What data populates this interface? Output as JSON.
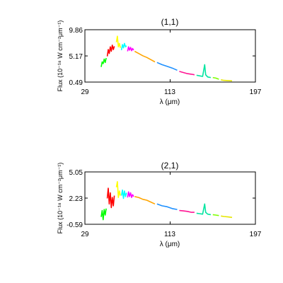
{
  "chart_data": [
    {
      "type": "line",
      "title": "(1,1)",
      "xlabel": "λ (μm)",
      "ylabel": "Flux (10⁻¹⁸ W cm⁻²μm⁻¹)",
      "xlim": [
        29,
        197
      ],
      "ylim": [
        0.49,
        9.86
      ],
      "x_ticks": [
        "29",
        "113",
        "197"
      ],
      "y_ticks": [
        "0.49",
        "5.17",
        "9.86"
      ],
      "grid": false,
      "series": [
        {
          "color": "#00ff00",
          "x": [
            45,
            46,
            47,
            48,
            49,
            50
          ],
          "y": [
            3.2,
            4.1,
            3.8,
            4.6,
            4.0,
            4.8
          ]
        },
        {
          "color": "#ff0000",
          "x": [
            51,
            52,
            53,
            54,
            55,
            56,
            57,
            58
          ],
          "y": [
            5.1,
            6.3,
            5.6,
            6.8,
            6.0,
            7.1,
            6.3,
            6.9
          ]
        },
        {
          "color": "#ffff00",
          "x": [
            60,
            61,
            62,
            63,
            64
          ],
          "y": [
            7.6,
            8.7,
            6.8,
            7.4,
            6.6
          ]
        },
        {
          "color": "#00ffff",
          "x": [
            65,
            66,
            67,
            68,
            69,
            70
          ],
          "y": [
            6.2,
            7.2,
            6.6,
            7.4,
            6.8,
            7.0
          ]
        },
        {
          "color": "#ff00ff",
          "x": [
            71,
            72,
            73,
            74,
            75,
            76,
            77
          ],
          "y": [
            6.0,
            6.8,
            6.2,
            6.7,
            6.1,
            6.5,
            6.2
          ]
        },
        {
          "color": "#ffa500",
          "x": [
            78,
            82,
            86,
            90,
            94,
            98
          ],
          "y": [
            6.0,
            5.6,
            5.2,
            4.9,
            4.5,
            4.1
          ]
        },
        {
          "color": "#1e90ff",
          "x": [
            100,
            105,
            110,
            115,
            120
          ],
          "y": [
            4.0,
            3.6,
            3.3,
            3.0,
            2.6
          ]
        },
        {
          "color": "#ff1493",
          "x": [
            122,
            126,
            130,
            134,
            137
          ],
          "y": [
            2.4,
            2.2,
            2.0,
            1.9,
            1.8
          ]
        },
        {
          "color": "#00e5a0",
          "x": [
            139,
            142,
            145,
            147,
            148,
            150,
            153
          ],
          "y": [
            1.7,
            1.6,
            1.5,
            3.6,
            1.8,
            1.4,
            1.3
          ]
        },
        {
          "color": "#7fff00",
          "x": [
            155,
            158,
            161
          ],
          "y": [
            1.3,
            1.2,
            1.0
          ]
        },
        {
          "color": "#e6e600",
          "x": [
            163,
            166,
            170,
            174
          ],
          "y": [
            0.9,
            0.8,
            0.75,
            0.7
          ]
        }
      ]
    },
    {
      "type": "line",
      "title": "(2,1)",
      "xlabel": "λ (μm)",
      "ylabel": "Flux (10⁻¹⁸ W cm⁻²μm⁻¹)",
      "xlim": [
        29,
        197
      ],
      "ylim": [
        -0.59,
        5.05
      ],
      "x_ticks": [
        "29",
        "113",
        "197"
      ],
      "y_ticks": [
        "-0.59",
        "2.23",
        "5.05"
      ],
      "grid": false,
      "series": [
        {
          "color": "#00ff00",
          "x": [
            45,
            46,
            47,
            48,
            49,
            50
          ],
          "y": [
            0.2,
            0.9,
            -0.1,
            1.0,
            0.4,
            1.1
          ]
        },
        {
          "color": "#ff0000",
          "x": [
            51,
            52,
            53,
            54,
            55,
            56,
            57,
            58
          ],
          "y": [
            2.2,
            3.3,
            1.6,
            2.8,
            1.2,
            2.3,
            1.4,
            2.5
          ]
        },
        {
          "color": "#ffff00",
          "x": [
            60,
            61,
            62,
            63,
            64
          ],
          "y": [
            3.4,
            4.0,
            2.3,
            3.0,
            2.5
          ]
        },
        {
          "color": "#00ffff",
          "x": [
            65,
            66,
            67,
            68,
            69,
            70
          ],
          "y": [
            2.5,
            3.1,
            2.2,
            3.0,
            2.4,
            2.8
          ]
        },
        {
          "color": "#ff00ff",
          "x": [
            71,
            72,
            73,
            74,
            75,
            76,
            77
          ],
          "y": [
            2.3,
            2.9,
            2.4,
            2.8,
            2.3,
            2.6,
            2.4
          ]
        },
        {
          "color": "#ffa500",
          "x": [
            78,
            82,
            86,
            90,
            94,
            98
          ],
          "y": [
            2.4,
            2.3,
            2.1,
            2.0,
            1.8,
            1.6
          ]
        },
        {
          "color": "#1e90ff",
          "x": [
            100,
            105,
            110,
            115,
            120
          ],
          "y": [
            1.6,
            1.4,
            1.3,
            1.1,
            1.0
          ]
        },
        {
          "color": "#ff1493",
          "x": [
            122,
            126,
            130,
            134,
            137
          ],
          "y": [
            0.9,
            0.85,
            0.8,
            0.7,
            0.7
          ]
        },
        {
          "color": "#00e5a0",
          "x": [
            139,
            142,
            145,
            147,
            148,
            150,
            153
          ],
          "y": [
            0.6,
            0.55,
            0.5,
            1.6,
            0.7,
            0.5,
            0.45
          ]
        },
        {
          "color": "#7fff00",
          "x": [
            155,
            158,
            161
          ],
          "y": [
            0.45,
            0.4,
            0.35
          ]
        },
        {
          "color": "#e6e600",
          "x": [
            163,
            166,
            170,
            174
          ],
          "y": [
            0.3,
            0.25,
            0.2,
            0.15
          ]
        }
      ]
    }
  ]
}
